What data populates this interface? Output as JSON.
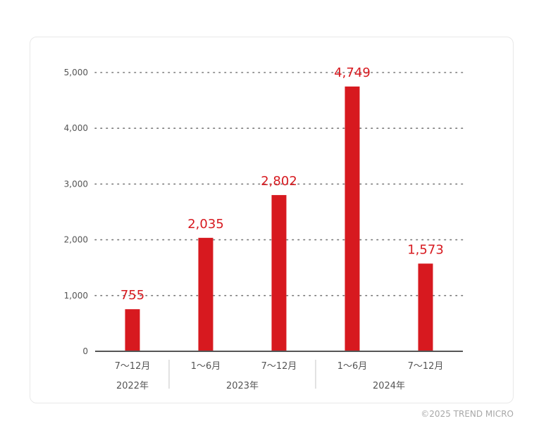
{
  "chart_data": {
    "type": "bar",
    "categories": [
      "7〜12月",
      "1〜6月",
      "7〜12月",
      "1〜6月",
      "7〜12月"
    ],
    "groups": [
      {
        "label": "2022年",
        "span": 1
      },
      {
        "label": "2023年",
        "span": 2
      },
      {
        "label": "2024年",
        "span": 2
      }
    ],
    "values": [
      755,
      2035,
      2802,
      4749,
      1573
    ],
    "data_labels": [
      "755",
      "2,035",
      "2,802",
      "4,749",
      "1,573"
    ],
    "yticks": [
      0,
      1000,
      2000,
      3000,
      4000,
      5000
    ],
    "ytick_labels": [
      "0",
      "1,000",
      "2,000",
      "3,000",
      "4,000",
      "5,000"
    ],
    "ylim": [
      0,
      5000
    ],
    "grid": "dotted horizontal",
    "bar_color": "#d7191f",
    "label_color": "#d7191f"
  },
  "footer": {
    "copyright": "©2025 TREND MICRO"
  }
}
